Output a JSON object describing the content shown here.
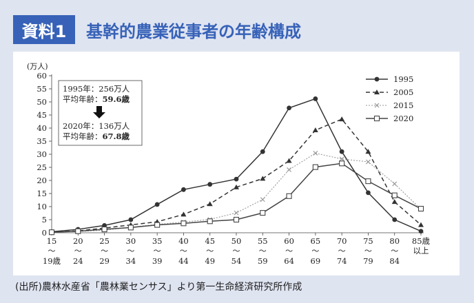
{
  "header": {
    "badge": "資料1",
    "title": "基幹的農業従事者の年齢構成"
  },
  "chart_data": {
    "type": "line",
    "unit_label": "(万人)",
    "ylim": [
      0,
      60
    ],
    "yticks": [
      0,
      5,
      10,
      15,
      20,
      25,
      30,
      35,
      40,
      45,
      50,
      55,
      60
    ],
    "categories": [
      {
        "top": "15",
        "tilde": "〜",
        "bottom": "19歳"
      },
      {
        "top": "20",
        "tilde": "〜",
        "bottom": "24"
      },
      {
        "top": "25",
        "tilde": "〜",
        "bottom": "29"
      },
      {
        "top": "30",
        "tilde": "〜",
        "bottom": "34"
      },
      {
        "top": "35",
        "tilde": "〜",
        "bottom": "39"
      },
      {
        "top": "40",
        "tilde": "〜",
        "bottom": "44"
      },
      {
        "top": "45",
        "tilde": "〜",
        "bottom": "49"
      },
      {
        "top": "50",
        "tilde": "〜",
        "bottom": "54"
      },
      {
        "top": "55",
        "tilde": "〜",
        "bottom": "59"
      },
      {
        "top": "60",
        "tilde": "〜",
        "bottom": "64"
      },
      {
        "top": "65",
        "tilde": "〜",
        "bottom": "69"
      },
      {
        "top": "70",
        "tilde": "〜",
        "bottom": "74"
      },
      {
        "top": "75",
        "tilde": "〜",
        "bottom": "79"
      },
      {
        "top": "80",
        "tilde": "〜",
        "bottom": "84"
      },
      {
        "top": "85歳",
        "tilde": "",
        "bottom": "以上"
      }
    ],
    "series": [
      {
        "name": "1995",
        "style": "solid",
        "marker": "filled-circle",
        "color": "#333333",
        "values": [
          0.4,
          1.3,
          2.8,
          5.0,
          10.8,
          16.5,
          18.5,
          20.5,
          31.0,
          47.7,
          51.2,
          31.0,
          15.3,
          5.0,
          0.6
        ]
      },
      {
        "name": "2005",
        "style": "dashed",
        "marker": "triangle",
        "color": "#333333",
        "values": [
          0.3,
          0.7,
          1.8,
          3.0,
          4.2,
          7.0,
          11.0,
          17.4,
          20.7,
          27.5,
          39.2,
          43.4,
          31.0,
          11.8,
          3.0
        ]
      },
      {
        "name": "2015",
        "style": "dotted",
        "marker": "x",
        "color": "#999999",
        "values": [
          0.2,
          0.5,
          1.0,
          2.1,
          3.2,
          4.1,
          5.1,
          7.6,
          12.7,
          24.1,
          30.4,
          28.2,
          27.1,
          18.7,
          9.0
        ]
      },
      {
        "name": "2020",
        "style": "solid",
        "marker": "open-square",
        "color": "#444444",
        "values": [
          0.2,
          0.6,
          1.3,
          2.0,
          3.0,
          3.6,
          4.4,
          5.0,
          7.6,
          14.0,
          25.1,
          26.5,
          19.7,
          14.3,
          9.2
        ]
      }
    ],
    "annotation": {
      "line1_label": "1995年：256万人",
      "line2_prefix": "平均年齢：",
      "line2_value": "59.6歳",
      "line3_label": "2020年：136万人",
      "line4_prefix": "平均年齢：",
      "line4_value": "67.8歳"
    }
  },
  "footer": {
    "source": "(出所)農林水産省「農林業センサス」より第一生命経済研究所作成"
  }
}
